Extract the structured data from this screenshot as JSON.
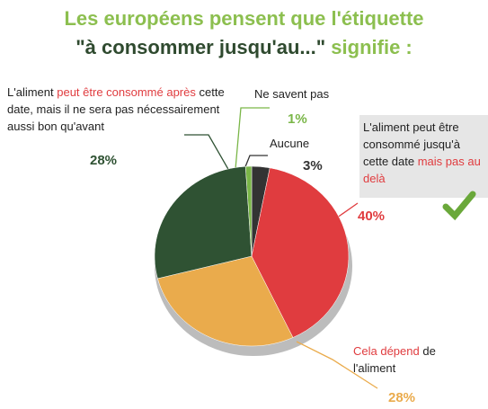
{
  "chart_data": {
    "type": "pie",
    "title_parts": [
      [
        {
          "text": "Les européens pensent que l'étiquette",
          "color": "#8cbf4f"
        }
      ],
      [
        {
          "text": "\"à consommer jusqu'au...\"",
          "color": "#2f4a2f"
        },
        {
          "text": " signifie :",
          "color": "#8cbf4f"
        }
      ]
    ],
    "slices": [
      {
        "label_parts": [
          {
            "text": "Aucune",
            "color": "#222222"
          }
        ],
        "value": 3,
        "value_label": "3%",
        "color": "#333333"
      },
      {
        "label_parts": [
          {
            "text": "L'aliment peut être consommé jusqu'à cette date ",
            "color": "#222222"
          },
          {
            "text": "mais pas au delà",
            "color": "#e03c3f"
          }
        ],
        "value": 40,
        "value_label": "40%",
        "color": "#e03c3f"
      },
      {
        "label_parts": [
          {
            "text": "Cela dépend",
            "color": "#e03c3f"
          },
          {
            "text": " de l'aliment",
            "color": "#222222"
          }
        ],
        "value": 28,
        "value_label": "28%",
        "color": "#eaab4c"
      },
      {
        "label_parts": [
          {
            "text": "L'aliment ",
            "color": "#222222"
          },
          {
            "text": "peut être consommé après",
            "color": "#e03c3f"
          },
          {
            "text": " cette date, mais il ne sera pas nécessairement aussi bon qu'avant",
            "color": "#222222"
          }
        ],
        "value": 28,
        "value_label": "28%",
        "color": "#2f5233"
      },
      {
        "label_parts": [
          {
            "text": "Ne savent pas",
            "color": "#222222"
          }
        ],
        "value": 1,
        "value_label": "1%",
        "color": "#7ab648"
      }
    ]
  }
}
